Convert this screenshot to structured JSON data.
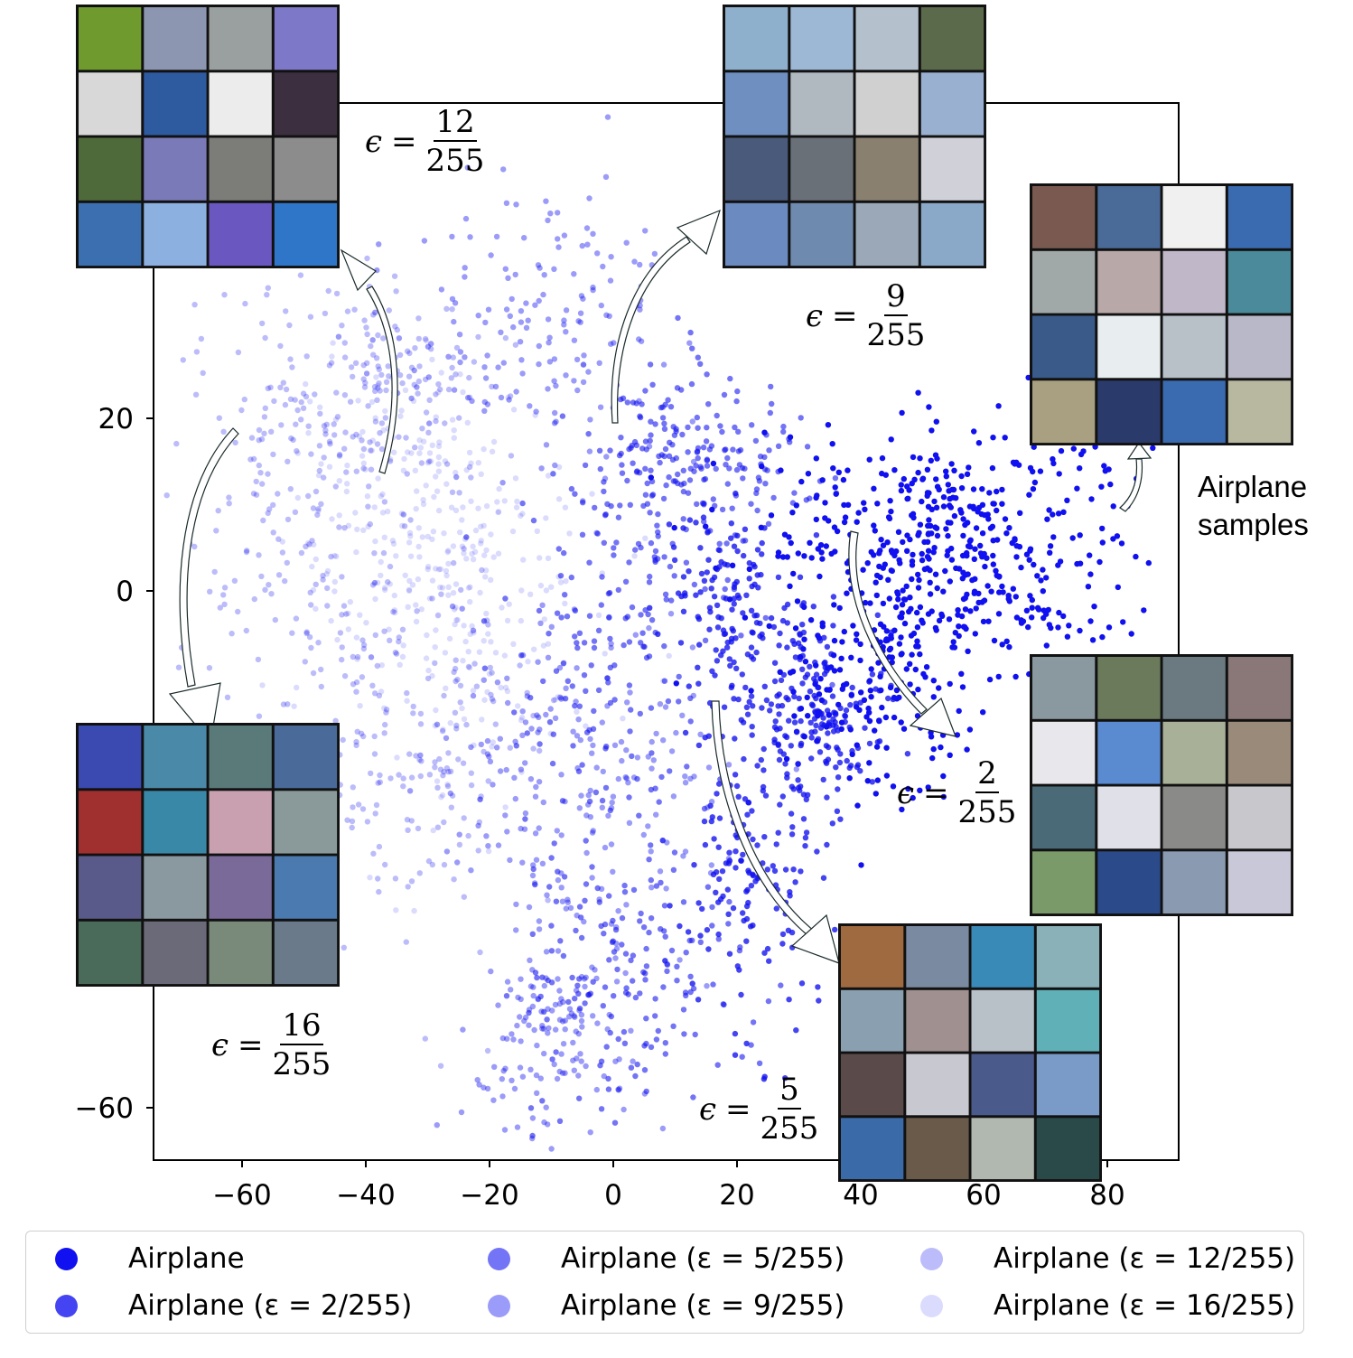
{
  "chart_data": {
    "type": "scatter",
    "title": "",
    "xlabel": "",
    "ylabel": "",
    "xlim": [
      -75,
      92
    ],
    "ylim": [
      -67,
      70
    ],
    "x_ticks": [
      "−60",
      "−40",
      "−20",
      "0",
      "20",
      "40",
      "60",
      "80"
    ],
    "y_ticks": [
      "20",
      "0",
      "−60"
    ],
    "grid": false,
    "legend_position": "bottom",
    "series": [
      {
        "name": "Airplane",
        "color": "#1010f0",
        "opacity": 1.0,
        "clusters": [
          {
            "cx": 55,
            "cy": 5,
            "sx": 16,
            "sy": 7,
            "n": 520
          },
          {
            "cx": 42,
            "cy": -12,
            "sx": 7,
            "sy": 6,
            "n": 160
          }
        ]
      },
      {
        "name": "Airplane (ε = 2/255)",
        "color": "#1010f0",
        "opacity": 0.78,
        "clusters": [
          {
            "cx": 33,
            "cy": -15,
            "sx": 6,
            "sy": 5,
            "n": 180
          },
          {
            "cx": 20,
            "cy": -2,
            "sx": 6,
            "sy": 6,
            "n": 150
          },
          {
            "cx": 23,
            "cy": -32,
            "sx": 6,
            "sy": 10,
            "n": 160
          }
        ]
      },
      {
        "name": "Airplane (ε = 5/255)",
        "color": "#1010f0",
        "opacity": 0.58,
        "clusters": [
          {
            "cx": 12,
            "cy": 15,
            "sx": 9,
            "sy": 5,
            "n": 200
          },
          {
            "cx": 3,
            "cy": -45,
            "sx": 9,
            "sy": 8,
            "n": 170
          },
          {
            "cx": 0,
            "cy": -5,
            "sx": 10,
            "sy": 10,
            "n": 170
          }
        ]
      },
      {
        "name": "Airplane (ε = 9/255)",
        "color": "#1010f0",
        "opacity": 0.42,
        "clusters": [
          {
            "cx": -5,
            "cy": -22,
            "sx": 12,
            "sy": 10,
            "n": 200
          },
          {
            "cx": -12,
            "cy": 30,
            "sx": 12,
            "sy": 8,
            "n": 170
          },
          {
            "cx": -10,
            "cy": -50,
            "sx": 7,
            "sy": 6,
            "n": 140
          }
        ]
      },
      {
        "name": "Airplane (ε = 12/255)",
        "color": "#1010f0",
        "opacity": 0.28,
        "clusters": [
          {
            "cx": -35,
            "cy": -15,
            "sx": 10,
            "sy": 12,
            "n": 200
          },
          {
            "cx": -52,
            "cy": 15,
            "sx": 9,
            "sy": 12,
            "n": 190
          },
          {
            "cx": -35,
            "cy": 25,
            "sx": 8,
            "sy": 6,
            "n": 100
          }
        ]
      },
      {
        "name": "Airplane (ε = 16/255)",
        "color": "#1010f0",
        "opacity": 0.15,
        "clusters": [
          {
            "cx": -25,
            "cy": 0,
            "sx": 12,
            "sy": 12,
            "n": 240
          },
          {
            "cx": -35,
            "cy": 10,
            "sx": 9,
            "sy": 8,
            "n": 120
          }
        ]
      }
    ],
    "annotations": [
      {
        "label_num": "12",
        "label_den": "255"
      },
      {
        "label_num": "9",
        "label_den": "255"
      },
      {
        "label_num": "2",
        "label_den": "255"
      },
      {
        "label_num": "5",
        "label_den": "255"
      },
      {
        "label_num": "16",
        "label_den": "255"
      }
    ]
  },
  "labels": {
    "eps_symbol": "ϵ",
    "equals": "=",
    "samples_line1": "Airplane",
    "samples_line2": "samples"
  },
  "legend": [
    {
      "label": "Airplane"
    },
    {
      "label": "Airplane (ε = 2/255)"
    },
    {
      "label": "Airplane (ε = 5/255)"
    },
    {
      "label": "Airplane (ε = 9/255)"
    },
    {
      "label": "Airplane (ε = 12/255)"
    },
    {
      "label": "Airplane (ε = 16/255)"
    }
  ],
  "image_grids": [
    {
      "name": "eps-12-samples",
      "tile_colors": [
        "#6f9a2e",
        "#8c96b0",
        "#9aa0a0",
        "#7d78c8",
        "#d8d8d8",
        "#2e5aa0",
        "#ececec",
        "#3c3040",
        "#4f6a3a",
        "#7a7ab8",
        "#7c7c78",
        "#8c8c8c",
        "#3c6fb0",
        "#8cb0e0",
        "#6a58c0",
        "#2f76c8"
      ]
    },
    {
      "name": "eps-9-samples",
      "tile_colors": [
        "#8fb0cc",
        "#9cb8d4",
        "#b4c0cc",
        "#5a6a4a",
        "#6f8fc0",
        "#b0b8c0",
        "#d0d0d0",
        "#9ab0d0",
        "#4a5a7a",
        "#6a7078",
        "#8a8070",
        "#cfd0d8",
        "#6a8ac0",
        "#6f8aaf",
        "#9aa8b8",
        "#8aa8c8"
      ]
    },
    {
      "name": "airplane-samples",
      "tile_colors": [
        "#7a5a50",
        "#4a6a98",
        "#f0f0f0",
        "#3a6ab0",
        "#a0a8a8",
        "#b8a8a8",
        "#c0b8c8",
        "#4a8a9a",
        "#3a5a8a",
        "#e8eef0",
        "#b8c0c8",
        "#b8b8c8",
        "#a8a080",
        "#2a3a6a",
        "#3a6ab0",
        "#b8b8a0"
      ]
    },
    {
      "name": "eps-2-samples",
      "tile_colors": [
        "#8a98a0",
        "#6a7a5a",
        "#6a7a80",
        "#8a7878",
        "#e8e8ec",
        "#5a8ad0",
        "#a8b098",
        "#9a8a7a",
        "#4a6a78",
        "#e0e0e8",
        "#8a8a88",
        "#c8c8cc",
        "#7a9a6a",
        "#2a4a8a",
        "#8a9ab0",
        "#c8c8d8"
      ]
    },
    {
      "name": "eps-5-samples",
      "tile_colors": [
        "#a06a40",
        "#7a8aa0",
        "#3a8ab8",
        "#8ab0b8",
        "#8aa0b0",
        "#a09090",
        "#b8c0c8",
        "#60b0b8",
        "#5a4a4a",
        "#c8c8d0",
        "#4a5a8a",
        "#7a9ac8",
        "#3a6aa8",
        "#6a5a4a",
        "#b0b8b0",
        "#2a4a4a"
      ]
    },
    {
      "name": "eps-16-samples",
      "tile_colors": [
        "#3a4ab0",
        "#4a8aa8",
        "#5a7a7a",
        "#4a6a9a",
        "#a03030",
        "#3a88a8",
        "#c8a0b0",
        "#8a9a9a",
        "#5a5a8a",
        "#8a98a0",
        "#7a6a9a",
        "#4a7ab0",
        "#4a6a5a",
        "#6a6a78",
        "#7a8a7a",
        "#6a7a8a"
      ]
    }
  ]
}
